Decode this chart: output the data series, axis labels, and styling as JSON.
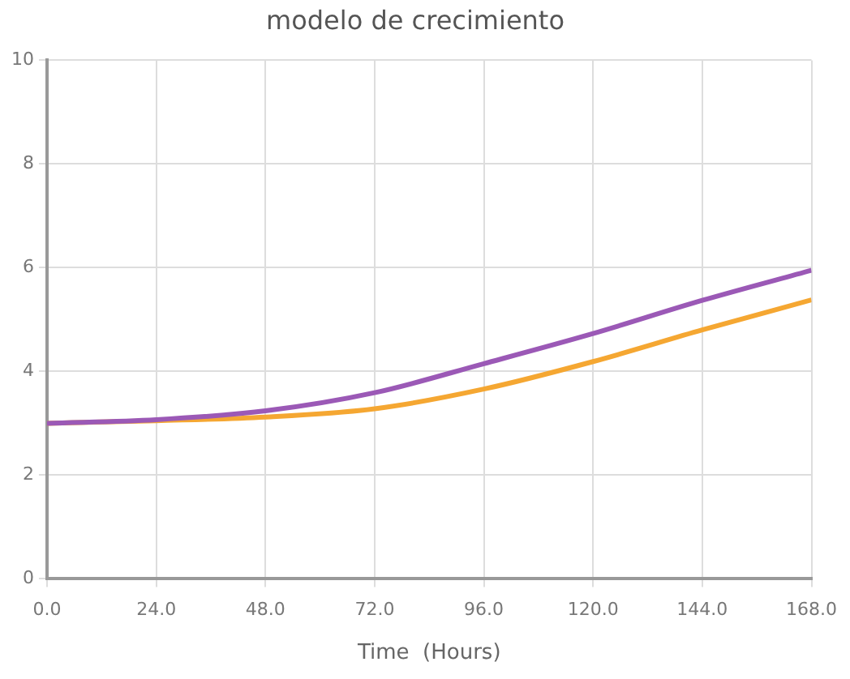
{
  "chart_data": {
    "type": "line",
    "title": "modelo de crecimiento",
    "xlabel": "Time  (Hours)",
    "x": [
      0,
      24,
      48,
      72,
      96,
      120,
      144,
      168
    ],
    "series": [
      {
        "color": "#9b59b6",
        "values": [
          3.0,
          3.07,
          3.24,
          3.59,
          4.15,
          4.73,
          5.37,
          5.95
        ]
      },
      {
        "color": "#f5a732",
        "values": [
          3.0,
          3.05,
          3.12,
          3.28,
          3.66,
          4.19,
          4.8,
          5.38
        ]
      }
    ],
    "xlim": [
      0,
      168
    ],
    "xticks": [
      {
        "value": 0,
        "label": "0.0"
      },
      {
        "value": 24,
        "label": "24.0"
      },
      {
        "value": 48,
        "label": "48.0"
      },
      {
        "value": 72,
        "label": "72.0"
      },
      {
        "value": 96,
        "label": "96.0"
      },
      {
        "value": 120,
        "label": "120.0"
      },
      {
        "value": 144,
        "label": "144.0"
      },
      {
        "value": 168,
        "label": "168.0"
      }
    ],
    "ylim": [
      0,
      10
    ],
    "yticks": [
      0,
      2,
      4,
      6,
      8,
      10
    ],
    "grid": true,
    "legend": false,
    "marker": "none",
    "line_style": "solid"
  }
}
